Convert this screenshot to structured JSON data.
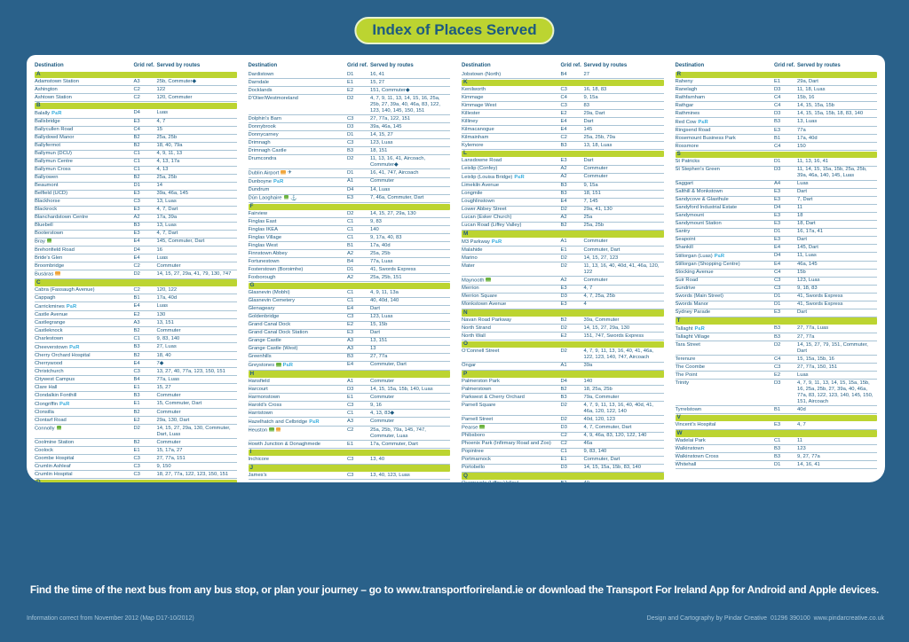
{
  "title": "Index of Places Served",
  "banner": "Find the time of the next bus from any bus stop, or plan your journey – go to www.transportforireland.ie or download the Transport For Ireland App for Android and Apple devices.",
  "footer_left": "Information correct from November 2012 (Map D17-10/2012)",
  "footer_right": "Design and Cartography by Pindar Creative  01296 390100  www.pindarcreative.co.uk",
  "colors": {
    "background_blue": "#2a618a",
    "accent_green": "#bcd431",
    "text_blue": "#1d5a80",
    "park_and_ride_blue": "#2da9dc",
    "rail_icon_green": "#6db33f",
    "bus_icon_orange": "#f0a63c",
    "row_divider": "#a9c4d5"
  },
  "icons": {
    "rail": "irish-rail-icon",
    "bus": "bus-station-icon",
    "plane": "airport-icon",
    "ferry": "ferry-icon",
    "pr": "park-and-ride-badge"
  },
  "table": {
    "headers": [
      "Destination",
      "Grid ref.",
      "Served by routes"
    ],
    "columns": [
      {
        "entries": [
          "A",
          [
            "Adamstown Station",
            "A3",
            "25b, Commuter◆"
          ],
          [
            "Ashington",
            "C2",
            "122"
          ],
          [
            "Ashtown Station",
            "C2",
            "120, Commuter"
          ],
          "B",
          [
            "Balally",
            "D4",
            "Luas",
            "pr"
          ],
          [
            "Ballsbridge",
            "E3",
            "4, 7"
          ],
          [
            "Ballycullen Road",
            "C4",
            "15"
          ],
          [
            "Ballydowd Manor",
            "B2",
            "25a, 25b"
          ],
          [
            "Ballyfermot",
            "B2",
            "18, 40, 79a"
          ],
          [
            "Ballymun (DCU)",
            "C1",
            "4, 9, 11, 13"
          ],
          [
            "Ballymun Centre",
            "C1",
            "4, 13, 17a"
          ],
          [
            "Ballymun Cross",
            "C1",
            "4, 13"
          ],
          [
            "Ballyowen",
            "B2",
            "25a, 25b"
          ],
          [
            "Beaumont",
            "D1",
            "14"
          ],
          [
            "Belfield (UCD)",
            "E3",
            "39a, 46a, 145"
          ],
          [
            "Blackhorse",
            "C3",
            "13, Luas"
          ],
          [
            "Blackrock",
            "E3",
            "4, 7, Dart"
          ],
          [
            "Blanchardstown Centre",
            "A2",
            "17a, 39a"
          ],
          [
            "Bluebell",
            "B3",
            "13, Luas"
          ],
          [
            "Booterstown",
            "E3",
            "4, 7, Dart"
          ],
          [
            "Bray",
            "E4",
            "145, Commuter, Dart",
            "rail"
          ],
          [
            "Brehonfield Road",
            "D4",
            "16"
          ],
          [
            "Bride's Glen",
            "E4",
            "Luas"
          ],
          [
            "Broombridge",
            "C2",
            "Commuter"
          ],
          [
            "Busáras",
            "D2",
            "14, 15, 27, 29a, 41, 79, 130, 747",
            "bus"
          ],
          "C",
          [
            "Cabra (Fassaugh Avenue)",
            "C2",
            "120, 122"
          ],
          [
            "Cappagh",
            "B1",
            "17a, 40d"
          ],
          [
            "Carrickmines",
            "E4",
            "Luas",
            "pr"
          ],
          [
            "Castle Avenue",
            "E2",
            "130"
          ],
          [
            "Castlegrange",
            "A3",
            "13, 151"
          ],
          [
            "Castleknock",
            "B2",
            "Commuter"
          ],
          [
            "Charlestown",
            "C1",
            "9, 83, 140"
          ],
          [
            "Cheeverstown",
            "B3",
            "27, Luas",
            "pr"
          ],
          [
            "Cherry Orchard Hospital",
            "B2",
            "18, 40"
          ],
          [
            "Cherrywood",
            "E4",
            "7◆"
          ],
          [
            "Christchurch",
            "C3",
            "13, 27, 40, 77a, 123, 150, 151"
          ],
          [
            "Citywest Campus",
            "B4",
            "77a, Luas"
          ],
          [
            "Clare Hall",
            "E1",
            "15, 27"
          ],
          [
            "Clondalkin Fonthill",
            "B3",
            "Commuter"
          ],
          [
            "Clongriffin",
            "E1",
            "15, Commuter, Dart",
            "pr"
          ],
          [
            "Clonsilla",
            "B2",
            "Commuter"
          ],
          [
            "Clontarf Road",
            "E2",
            "29a, 130, Dart"
          ],
          [
            "Connolly",
            "D2",
            "14, 15, 27, 29a, 130, Commuter, Dart, Luas",
            "rail"
          ],
          [
            "Coolmine Station",
            "B2",
            "Commuter"
          ],
          [
            "Coolock",
            "E1",
            "15, 17a, 27"
          ],
          [
            "Coombe Hospital",
            "C3",
            "27, 77a, 151"
          ],
          [
            "Crumlin Ashleaf",
            "C3",
            "9, 150"
          ],
          [
            "Crumlin Hospital",
            "C3",
            "18, 27, 77a, 122, 123, 150, 151"
          ],
          "D",
          [
            "Dalkey",
            "E4",
            "Dart"
          ]
        ]
      },
      {
        "entries": [
          [
            "Dardistown",
            "D1",
            "16, 41"
          ],
          [
            "Darndale",
            "E1",
            "15, 27"
          ],
          [
            "Docklands",
            "E2",
            "151, Commuter◆"
          ],
          [
            "D'Olier/Westmoreland",
            "D2",
            "4, 7, 9, 11, 13, 14, 15, 16, 25a, 25b, 27, 39a, 40, 46a, 83, 122, 123, 140, 145, 150, 151"
          ],
          [
            "Dolphin's Barn",
            "C3",
            "27, 77a, 122, 151"
          ],
          [
            "Donnybrook",
            "D3",
            "39a, 46a, 145"
          ],
          [
            "Donnycarney",
            "D1",
            "14, 15, 27"
          ],
          [
            "Drimnagh",
            "C3",
            "123, Luas"
          ],
          [
            "Drimnagh Castle",
            "B3",
            "18, 151"
          ],
          [
            "Drumcondra",
            "D2",
            "11, 13, 16, 41, Aircoach, Commuter◆"
          ],
          [
            "Dublin Airport",
            "D1",
            "16, 41, 747, Aircoach",
            "bus,plane"
          ],
          [
            "Dunboyne",
            "A1",
            "Commuter",
            "pr"
          ],
          [
            "Dundrum",
            "D4",
            "14, Luas"
          ],
          [
            "Dún Laoghaire",
            "E3",
            "7, 46a, Commuter, Dart",
            "rail,ferry"
          ],
          "F",
          [
            "Fairview",
            "D2",
            "14, 15, 27, 29a, 130"
          ],
          [
            "Finglas East",
            "C1",
            "9, 83"
          ],
          [
            "Finglas IKEA",
            "C1",
            "140"
          ],
          [
            "Finglas Village",
            "C1",
            "9, 17a, 40, 83"
          ],
          [
            "Finglas West",
            "B1",
            "17a, 40d"
          ],
          [
            "Finnstown Abbey",
            "A2",
            "25a, 25b"
          ],
          [
            "Fortunestown",
            "B4",
            "77a, Luas"
          ],
          [
            "Fosterstown (Boroimhe)",
            "D1",
            "41, Swords Express"
          ],
          [
            "Foxborough",
            "A2",
            "25a, 25b, 151"
          ],
          "G",
          [
            "Glasnevin (Mobhi)",
            "C1",
            "4, 9, 11, 13a"
          ],
          [
            "Glasnevin Cemetery",
            "C1",
            "40, 40d, 140"
          ],
          [
            "Glenageary",
            "E4",
            "Dart"
          ],
          [
            "Goldenbridge",
            "C3",
            "123, Luas"
          ],
          [
            "Grand Canal Dock",
            "E2",
            "15, 15b"
          ],
          [
            "Grand Canal Dock Station",
            "E3",
            "Dart"
          ],
          [
            "Grange Castle",
            "A3",
            "13, 151"
          ],
          [
            "Grange Castle (West)",
            "A3",
            "13"
          ],
          [
            "Greenhills",
            "B3",
            "27, 77a"
          ],
          [
            "Greystones",
            "E4",
            "Commuter, Dart",
            "rail,pr"
          ],
          "H",
          [
            "Hansfield",
            "A1",
            "Commuter"
          ],
          [
            "Harcourt",
            "D3",
            "14, 15, 15a, 15b, 140, Luas"
          ],
          [
            "Harmonstown",
            "E1",
            "Commuter"
          ],
          [
            "Harold's Cross",
            "C3",
            "9, 16"
          ],
          [
            "Harristown",
            "C1",
            "4, 13, 83◆"
          ],
          [
            "Hazelhatch and Celbridge",
            "A3",
            "Commuter",
            "pr"
          ],
          [
            "Heuston",
            "C2",
            "25a, 25b, 79a, 145, 747, Commuter, Luas",
            "rail,bus"
          ],
          [
            "Howth Junction & Donaghmede",
            "E1",
            "17a, Commuter, Dart"
          ],
          "I",
          [
            "Inchicore",
            "C3",
            "13, 40"
          ],
          "J",
          [
            "James's",
            "C3",
            "13, 40, 123, Luas"
          ]
        ]
      },
      {
        "entries": [
          [
            "Jobstown (North)",
            "B4",
            "27"
          ],
          "K",
          [
            "Kenilworth",
            "C3",
            "16, 18, 83"
          ],
          [
            "Kimmage",
            "C4",
            "9, 15a"
          ],
          [
            "Kimmage West",
            "C3",
            "83"
          ],
          [
            "Killester",
            "E2",
            "29a, Dart"
          ],
          [
            "Killiney",
            "E4",
            "Dart"
          ],
          [
            "Kilmacanogue",
            "E4",
            "145"
          ],
          [
            "Kilmainham",
            "C2",
            "25a, 25b, 79a"
          ],
          [
            "Kylemore",
            "B3",
            "13, 18, Luas"
          ],
          "L",
          [
            "Lansdowne Road",
            "E3",
            "Dart"
          ],
          [
            "Leixlip (Confey)",
            "A2",
            "Commuter"
          ],
          [
            "Leixlip (Louisa Bridge)",
            "A2",
            "Commuter",
            "pr"
          ],
          [
            "Limekiln Avenue",
            "B3",
            "9, 15a"
          ],
          [
            "Longmile",
            "B3",
            "18, 151"
          ],
          [
            "Loughlinstown",
            "E4",
            "7, 145"
          ],
          [
            "Lower Abbey Street",
            "D2",
            "29a, 41, 130"
          ],
          [
            "Lucan (Esker Church)",
            "A2",
            "25a"
          ],
          [
            "Lucan Road (Liffey Valley)",
            "B2",
            "25a, 25b"
          ],
          "M",
          [
            "M3 Parkway",
            "A1",
            "Commuter",
            "pr"
          ],
          [
            "Malahide",
            "E1",
            "Commuter, Dart"
          ],
          [
            "Marino",
            "D2",
            "14, 15, 27, 123"
          ],
          [
            "Mater",
            "D2",
            "11, 13, 16, 40, 40d, 41, 46a, 120, 122"
          ],
          [
            "Maynooth",
            "A2",
            "Commuter",
            "rail"
          ],
          [
            "Merrion",
            "E3",
            "4, 7"
          ],
          [
            "Merrion Square",
            "D3",
            "4, 7, 25a, 25b"
          ],
          [
            "Monkstown Avenue",
            "E3",
            "4"
          ],
          "N",
          [
            "Navan Road Parkway",
            "B2",
            "39a, Commuter"
          ],
          [
            "North Strand",
            "D2",
            "14, 15, 27, 29a, 130"
          ],
          [
            "North Wall",
            "E2",
            "151, 747, Swords Express"
          ],
          "O",
          [
            "O'Connell Street",
            "D2",
            "4, 7, 9, 11, 13, 16, 40, 41, 46a, 122, 123, 140, 747, Aircoach"
          ],
          [
            "Ongar",
            "A1",
            "39a"
          ],
          "P",
          [
            "Palmerston Park",
            "D4",
            "140"
          ],
          [
            "Palmerstown",
            "B2",
            "18, 25a, 25b"
          ],
          [
            "Parkwest & Cherry Orchard",
            "B3",
            "79a, Commuter"
          ],
          [
            "Parnell Square",
            "D2",
            "4, 7, 9, 11, 13, 16, 40, 40d, 41, 46a, 120, 122, 140"
          ],
          [
            "Parnell Street",
            "D2",
            "40d, 120, 123"
          ],
          [
            "Pearse",
            "D3",
            "4, 7, Commuter, Dart",
            "rail"
          ],
          [
            "Phibsboro",
            "C2",
            "4, 9, 46a, 83, 120, 122, 140"
          ],
          [
            "Phoenix Park (Infirmary Road and Zoo)",
            "C2",
            "46a"
          ],
          [
            "Popintree",
            "C1",
            "9, 83, 140"
          ],
          [
            "Portmarnock",
            "E1",
            "Commuter, Dart"
          ],
          [
            "Portobello",
            "D3",
            "14, 15, 15a, 15b, 83, 140"
          ],
          "Q",
          [
            "Quarryvale (Liffey Valley)",
            "B2",
            "40"
          ]
        ]
      },
      {
        "entries": [
          "R",
          [
            "Raheny",
            "E1",
            "29a, Dart"
          ],
          [
            "Ranelagh",
            "D3",
            "11, 18, Luas"
          ],
          [
            "Rathfarnham",
            "C4",
            "15b, 16"
          ],
          [
            "Rathgar",
            "C4",
            "14, 15, 15a, 15b"
          ],
          [
            "Rathmines",
            "D3",
            "14, 15, 15a, 15b, 18, 83, 140"
          ],
          [
            "Red Cow",
            "B3",
            "13, Luas",
            "pr"
          ],
          [
            "Ringsend Road",
            "E3",
            "77a"
          ],
          [
            "Rosemount Business Park",
            "B1",
            "17a, 40d"
          ],
          [
            "Rossmore",
            "C4",
            "150"
          ],
          "S",
          [
            "St Patricks",
            "D1",
            "11, 13, 16, 41"
          ],
          [
            "St Stephen's Green",
            "D3",
            "11, 14, 15, 15a, 15b, 25a, 25b, 39a, 46a, 140, 145, Luas"
          ],
          [
            "Saggart",
            "A4",
            "Luas"
          ],
          [
            "Salthill & Monkstown",
            "E3",
            "Dart"
          ],
          [
            "Sandycove & Glasthule",
            "E3",
            "7, Dart"
          ],
          [
            "Sandyford Industrial Estate",
            "D4",
            "11"
          ],
          [
            "Sandymount",
            "E3",
            "18"
          ],
          [
            "Sandymount Station",
            "E3",
            "18, Dart"
          ],
          [
            "Santry",
            "D1",
            "16, 17a, 41"
          ],
          [
            "Seapoint",
            "E3",
            "Dart"
          ],
          [
            "Shankill",
            "E4",
            "145, Dart"
          ],
          [
            "Stillorgan (Luas)",
            "D4",
            "11, Luas",
            "pr"
          ],
          [
            "Stillorgan (Shopping Centre)",
            "E4",
            "46a, 145"
          ],
          [
            "Stocking Avenue",
            "C4",
            "15b"
          ],
          [
            "Suir Road",
            "C3",
            "123, Luas"
          ],
          [
            "Sundrive",
            "C3",
            "9, 18, 83"
          ],
          [
            "Swords (Main Street)",
            "D1",
            "41, Swords Express"
          ],
          [
            "Swords Manor",
            "D1",
            "41, Swords Express"
          ],
          [
            "Sydney Parade",
            "E3",
            "Dart"
          ],
          "T",
          [
            "Tallaght",
            "B3",
            "27, 77a, Luas",
            "pr"
          ],
          [
            "Tallaght Village",
            "B3",
            "27, 77a"
          ],
          [
            "Tara Street",
            "D2",
            "14, 15, 27, 79, 151, Commuter, Dart"
          ],
          [
            "Terenure",
            "C4",
            "15, 15a, 15b, 16"
          ],
          [
            "The Coombe",
            "C3",
            "27, 77a, 150, 151"
          ],
          [
            "The Point",
            "E2",
            "Luas"
          ],
          [
            "Trinity",
            "D3",
            "4, 7, 9, 11, 13, 14, 15, 15a, 15b, 16, 25a, 25b, 27, 39a, 40, 46a, 77a, 83, 122, 123, 140, 145, 150, 151, Aircoach"
          ],
          [
            "Tyrrelstown",
            "B1",
            "40d"
          ],
          "V",
          [
            "Vincent's Hospital",
            "E3",
            "4, 7"
          ],
          "W",
          [
            "Wadelai Park",
            "C1",
            "11"
          ],
          [
            "Walkinstown",
            "B3",
            "123"
          ],
          [
            "Walkinstown Cross",
            "B3",
            "9, 27, 77a"
          ],
          [
            "Whitehall",
            "D1",
            "14, 16, 41"
          ]
        ]
      }
    ]
  }
}
